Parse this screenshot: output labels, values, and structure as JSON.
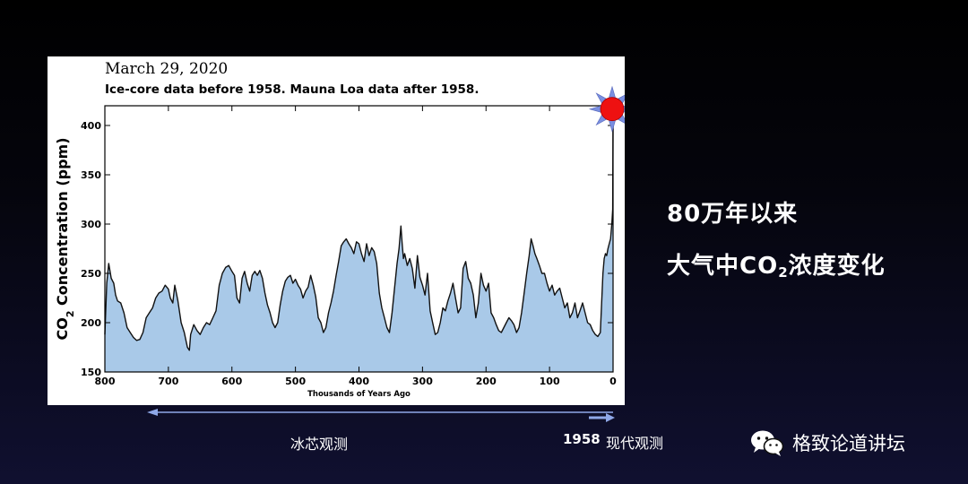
{
  "chart_data": {
    "type": "area",
    "date": "March 29, 2020",
    "title": "Ice-core data before 1958. Mauna Loa data after 1958.",
    "xlabel": "Thousands of Years Ago",
    "ylabel": "CO2 Concentration (ppm)",
    "xlim": [
      800,
      0
    ],
    "ylim": [
      150,
      420
    ],
    "xticks": [
      "800",
      "700",
      "600",
      "500",
      "400",
      "300",
      "200",
      "100",
      "0"
    ],
    "yticks": [
      "150",
      "200",
      "250",
      "300",
      "350",
      "400"
    ],
    "series": [
      {
        "x": [
          800,
          797,
          794,
          790,
          786,
          783,
          780,
          775,
          770,
          765,
          760,
          755,
          750,
          745,
          740,
          735,
          730,
          725,
          720,
          715,
          710,
          705,
          700,
          697,
          693,
          690,
          685,
          680,
          675,
          670,
          667,
          665,
          660,
          655,
          650,
          645,
          640,
          635,
          630,
          625,
          620,
          615,
          610,
          605,
          600,
          596,
          592,
          588,
          584,
          580,
          576,
          572,
          568,
          564,
          560,
          556,
          552,
          548,
          544,
          540,
          536,
          532,
          528,
          524,
          520,
          516,
          512,
          508,
          504,
          500,
          496,
          492,
          488,
          484,
          480,
          476,
          472,
          468,
          464,
          460,
          456,
          452,
          448,
          444,
          440,
          436,
          432,
          428,
          424,
          420,
          416,
          412,
          408,
          404,
          400,
          396,
          392,
          388,
          384,
          380,
          376,
          372,
          368,
          364,
          360,
          356,
          352,
          348,
          344,
          340,
          337,
          334,
          332,
          330,
          328,
          324,
          320,
          316,
          312,
          308,
          304,
          300,
          296,
          292,
          288,
          284,
          280,
          276,
          272,
          268,
          264,
          260,
          256,
          252,
          248,
          244,
          240,
          236,
          232,
          228,
          224,
          220,
          216,
          212,
          208,
          204,
          200,
          196,
          192,
          188,
          184,
          180,
          176,
          172,
          168,
          164,
          160,
          156,
          152,
          148,
          144,
          140,
          136,
          132,
          129,
          126,
          123,
          120,
          116,
          112,
          108,
          104,
          100,
          96,
          92,
          88,
          84,
          80,
          76,
          72,
          68,
          64,
          60,
          56,
          52,
          48,
          44,
          40,
          36,
          32,
          28,
          24,
          20,
          16,
          14,
          12,
          10,
          8,
          6,
          4,
          2,
          0.5,
          0.1,
          0
        ],
        "values": [
          188,
          240,
          260,
          245,
          240,
          228,
          222,
          220,
          210,
          195,
          190,
          185,
          182,
          183,
          190,
          205,
          210,
          215,
          225,
          230,
          232,
          238,
          234,
          225,
          220,
          238,
          222,
          200,
          190,
          175,
          172,
          188,
          198,
          192,
          188,
          195,
          200,
          198,
          205,
          212,
          238,
          250,
          256,
          258,
          252,
          248,
          225,
          220,
          245,
          252,
          240,
          232,
          248,
          252,
          248,
          253,
          245,
          230,
          218,
          210,
          200,
          195,
          200,
          218,
          232,
          242,
          246,
          248,
          240,
          244,
          238,
          234,
          225,
          232,
          236,
          248,
          238,
          226,
          205,
          200,
          190,
          195,
          210,
          220,
          232,
          248,
          262,
          278,
          282,
          285,
          280,
          276,
          270,
          282,
          280,
          270,
          262,
          280,
          268,
          276,
          272,
          260,
          230,
          215,
          205,
          195,
          190,
          210,
          235,
          260,
          275,
          298,
          280,
          265,
          270,
          258,
          265,
          255,
          235,
          268,
          246,
          238,
          228,
          250,
          212,
          200,
          188,
          190,
          200,
          215,
          212,
          222,
          230,
          240,
          225,
          210,
          215,
          255,
          262,
          245,
          240,
          228,
          205,
          220,
          250,
          238,
          232,
          240,
          210,
          205,
          198,
          192,
          190,
          195,
          200,
          205,
          202,
          198,
          190,
          195,
          210,
          230,
          250,
          268,
          285,
          278,
          270,
          265,
          258,
          250,
          250,
          240,
          232,
          238,
          228,
          232,
          235,
          225,
          215,
          220,
          205,
          210,
          220,
          205,
          212,
          220,
          210,
          200,
          198,
          192,
          188,
          186,
          190,
          250,
          265,
          270,
          268,
          275,
          280,
          285,
          300,
          315,
          390,
          413
        ]
      }
    ]
  },
  "side_title": {
    "line1": "80万年以来",
    "line2_prefix": "大气中CO",
    "line2_sub": "2",
    "line2_suffix": "浓度变化"
  },
  "captions": {
    "ice_core": "冰芯观测",
    "year": "1958",
    "modern": "现代观测"
  },
  "brand": {
    "label": "格致论道讲坛",
    "icon": "wechat-icon"
  },
  "colors": {
    "fill": "#a9c9e8",
    "line": "#111111",
    "sun": "#ee1111",
    "sun_rays": "#7a8fe0",
    "arrow": "#8fa8e8"
  }
}
